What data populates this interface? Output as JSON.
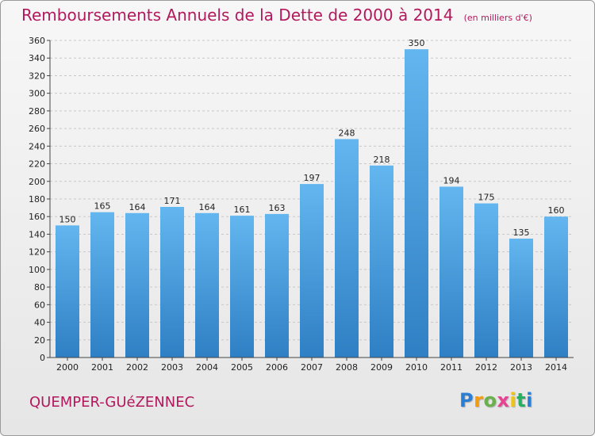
{
  "header": {
    "title": "Remboursements Annuels de la Dette de 2000 à 2014",
    "unit": "(en milliers d'€)"
  },
  "footer": {
    "commune": "QUEMPER-GUéZENNEC",
    "logo": [
      "P",
      "r",
      "o",
      "x",
      "i",
      "t",
      "i"
    ]
  },
  "colors": {
    "bar_top": "#63b6ef",
    "bar_bottom": "#2f7fc4",
    "title": "#b2195d",
    "grid": "#c8c8c8"
  },
  "chart_data": {
    "type": "bar",
    "title": "Remboursements Annuels de la Dette de 2000 à 2014",
    "subtitle": "(en milliers d'€)",
    "xlabel": "",
    "ylabel": "",
    "categories": [
      "2000",
      "2001",
      "2002",
      "2003",
      "2004",
      "2005",
      "2006",
      "2007",
      "2008",
      "2009",
      "2010",
      "2011",
      "2012",
      "2013",
      "2014"
    ],
    "values": [
      150,
      165,
      164,
      171,
      164,
      161,
      163,
      197,
      248,
      218,
      350,
      194,
      175,
      135,
      160
    ],
    "ylim": [
      0,
      360
    ],
    "ytick_step": 20,
    "grid": true,
    "data_labels": true
  }
}
